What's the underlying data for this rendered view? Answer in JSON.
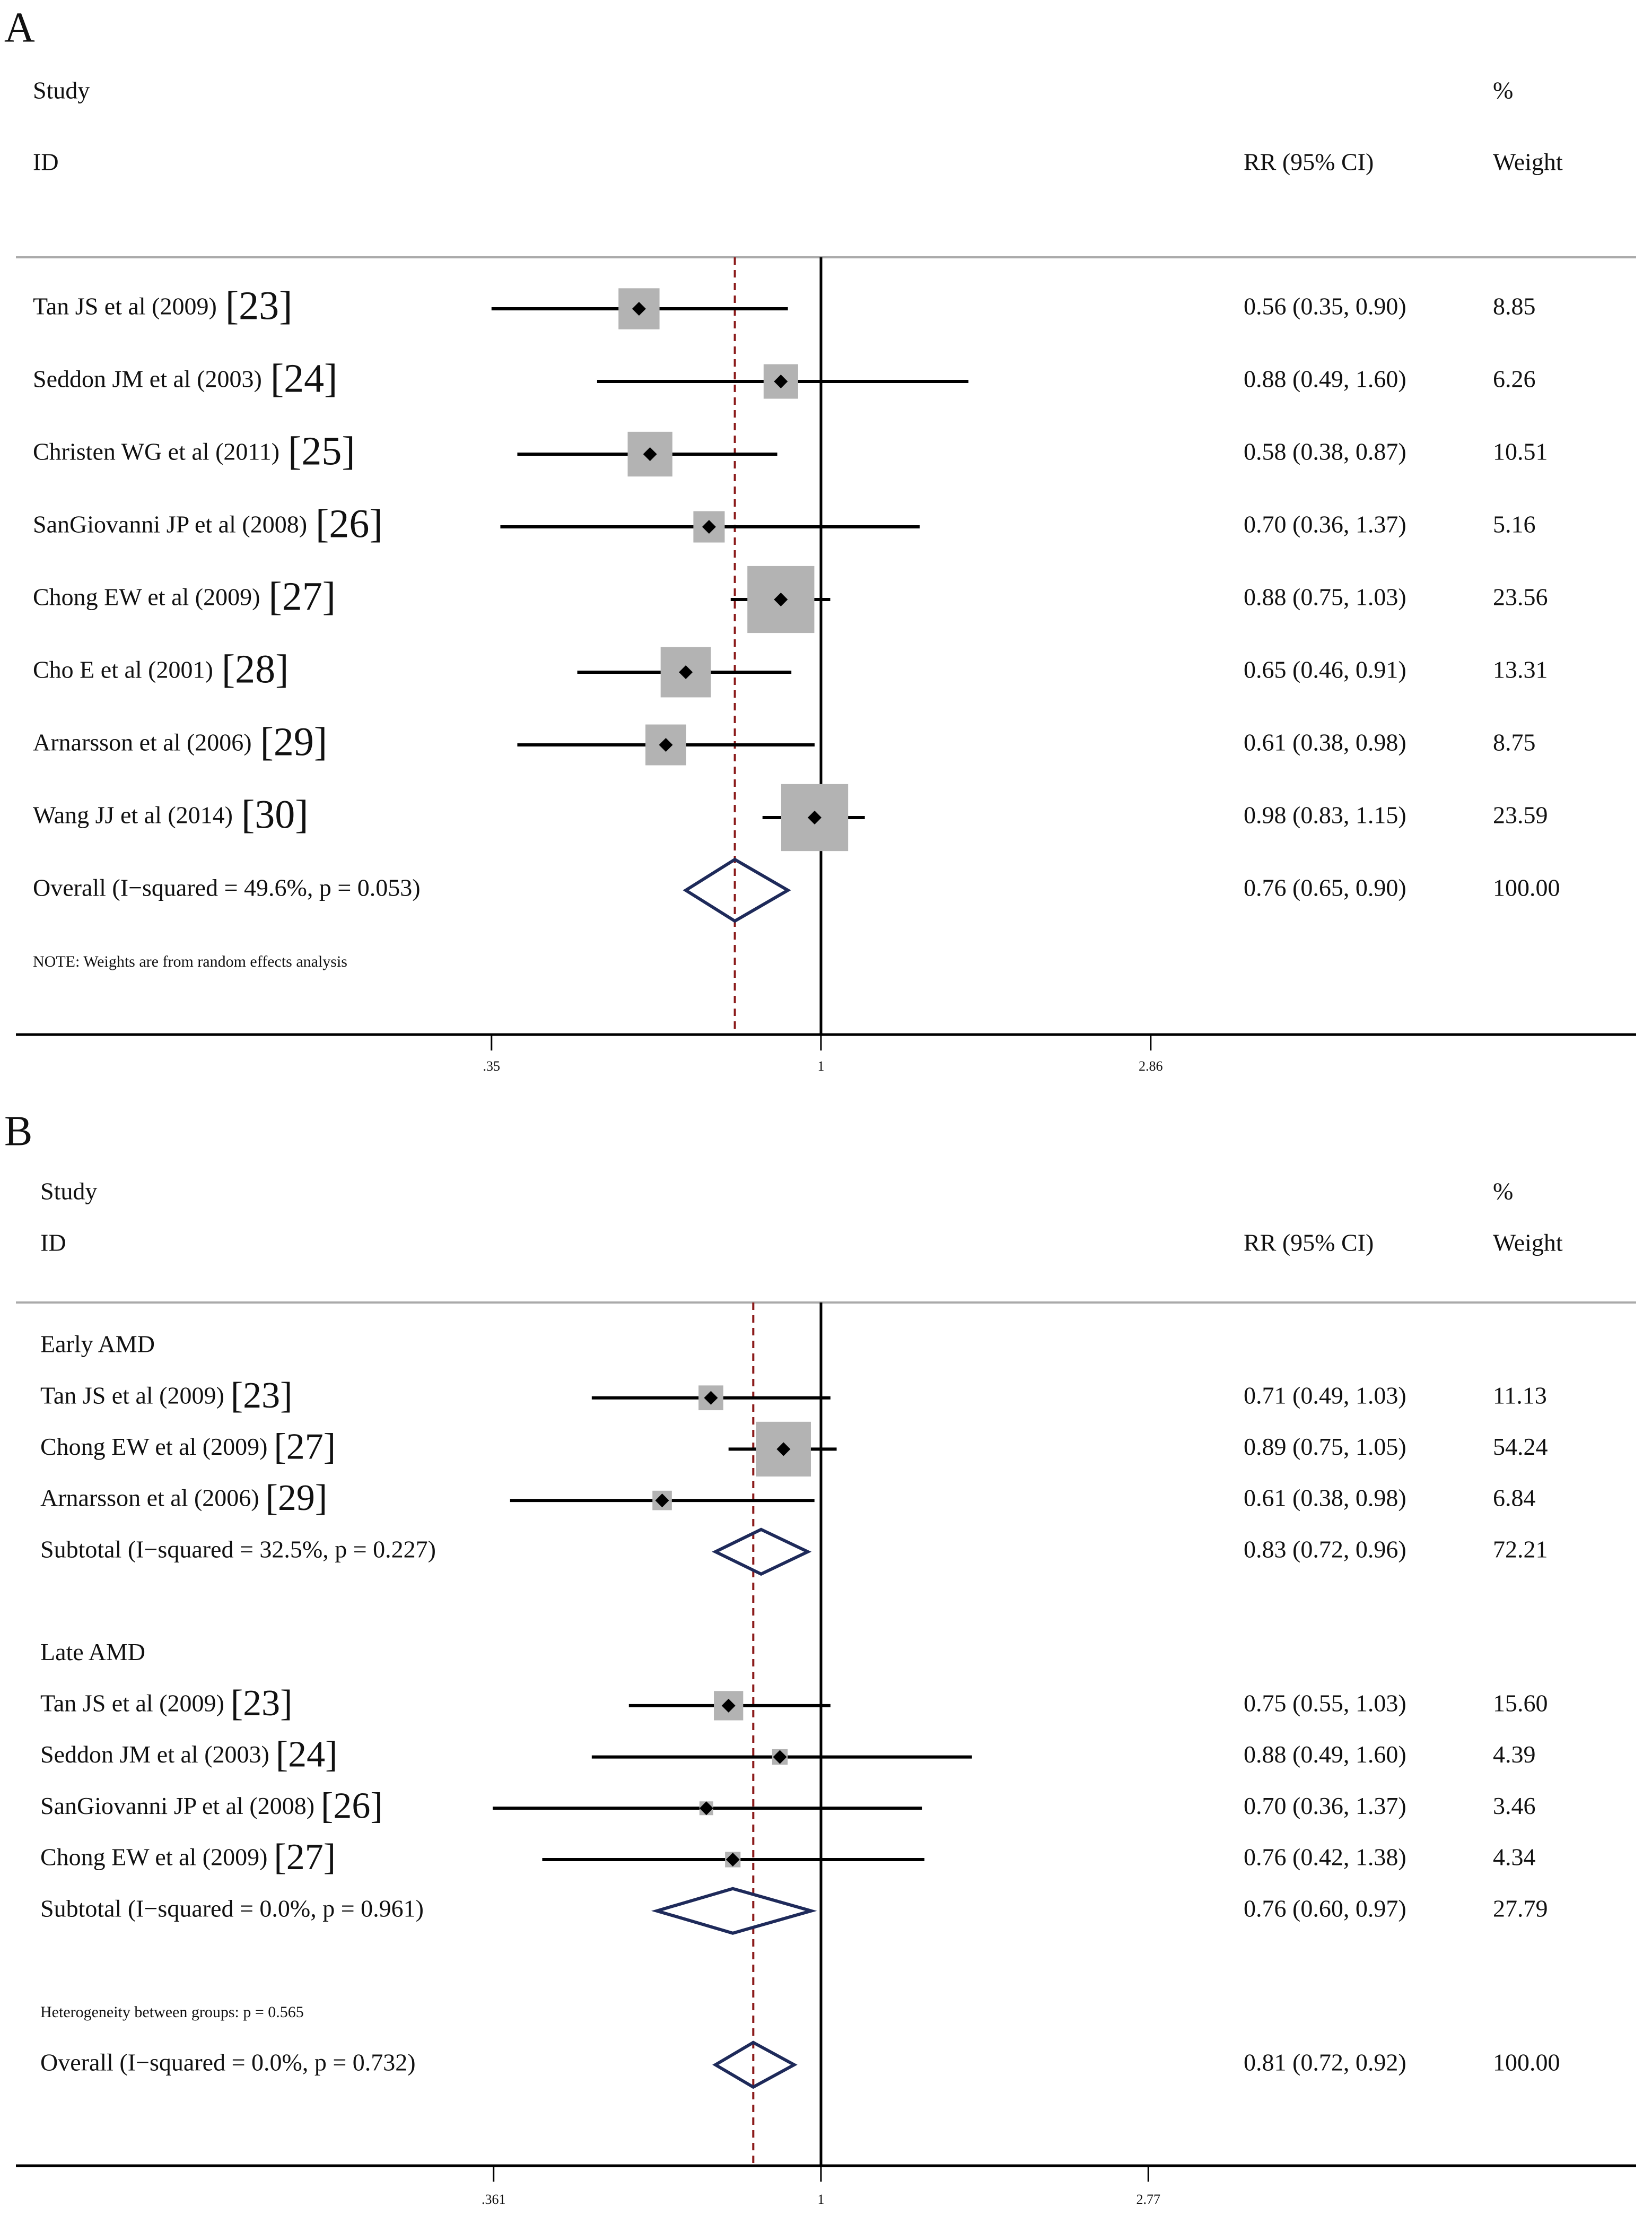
{
  "chart_data": [
    {
      "type": "forest",
      "panel_label": "A",
      "headers": {
        "study": "Study",
        "id": "ID",
        "rr": "RR (95% CI)",
        "pct": "%",
        "weight": "Weight"
      },
      "x_scale": "log",
      "x_ticks": [
        {
          "value": 0.35,
          "label": ".35"
        },
        {
          "value": 1,
          "label": "1"
        },
        {
          "value": 2.86,
          "label": "2.86"
        }
      ],
      "null_line": 1,
      "pooled_line": 0.76,
      "rows": [
        {
          "kind": "study",
          "name": "Tan JS et al (2009)",
          "ref": "[23]",
          "rr": 0.56,
          "lo": 0.35,
          "hi": 0.9,
          "rr_text": "0.56 (0.35, 0.90)",
          "weight": 8.85,
          "weight_text": "8.85"
        },
        {
          "kind": "study",
          "name": "Seddon JM et al (2003)",
          "ref": "[24]",
          "rr": 0.88,
          "lo": 0.49,
          "hi": 1.6,
          "rr_text": "0.88 (0.49, 1.60)",
          "weight": 6.26,
          "weight_text": "6.26"
        },
        {
          "kind": "study",
          "name": "Christen WG et al (2011)",
          "ref": "[25]",
          "rr": 0.58,
          "lo": 0.38,
          "hi": 0.87,
          "rr_text": "0.58 (0.38, 0.87)",
          "weight": 10.51,
          "weight_text": "10.51"
        },
        {
          "kind": "study",
          "name": "SanGiovanni JP et al (2008)",
          "ref": "[26]",
          "rr": 0.7,
          "lo": 0.36,
          "hi": 1.37,
          "rr_text": "0.70 (0.36, 1.37)",
          "weight": 5.16,
          "weight_text": "5.16"
        },
        {
          "kind": "study",
          "name": "Chong EW et al (2009)",
          "ref": "[27]",
          "rr": 0.88,
          "lo": 0.75,
          "hi": 1.03,
          "rr_text": "0.88 (0.75, 1.03)",
          "weight": 23.56,
          "weight_text": "23.56"
        },
        {
          "kind": "study",
          "name": "Cho E et al (2001)",
          "ref": "[28]",
          "rr": 0.65,
          "lo": 0.46,
          "hi": 0.91,
          "rr_text": "0.65 (0.46, 0.91)",
          "weight": 13.31,
          "weight_text": "13.31"
        },
        {
          "kind": "study",
          "name": "Arnarsson et al (2006)",
          "ref": "[29]",
          "rr": 0.61,
          "lo": 0.38,
          "hi": 0.98,
          "rr_text": "0.61 (0.38, 0.98)",
          "weight": 8.75,
          "weight_text": "8.75"
        },
        {
          "kind": "study",
          "name": "Wang JJ et al (2014)",
          "ref": "[30]",
          "rr": 0.98,
          "lo": 0.83,
          "hi": 1.15,
          "rr_text": "0.98 (0.83, 1.15)",
          "weight": 23.59,
          "weight_text": "23.59"
        },
        {
          "kind": "overall",
          "name": "Overall  (I−squared = 49.6%, p = 0.053)",
          "rr": 0.76,
          "lo": 0.65,
          "hi": 0.9,
          "rr_text": "0.76 (0.65, 0.90)",
          "weight_text": "100.00"
        },
        {
          "kind": "note",
          "name": "NOTE: Weights are from random effects analysis"
        }
      ]
    },
    {
      "type": "forest",
      "panel_label": "B",
      "headers": {
        "study": "Study",
        "id": "ID",
        "rr": "RR (95% CI)",
        "pct": "%",
        "weight": "Weight"
      },
      "x_scale": "log",
      "x_ticks": [
        {
          "value": 0.361,
          "label": ".361"
        },
        {
          "value": 1,
          "label": "1"
        },
        {
          "value": 2.77,
          "label": "2.77"
        }
      ],
      "null_line": 1,
      "pooled_line": 0.81,
      "rows": [
        {
          "kind": "group",
          "name": "Early AMD"
        },
        {
          "kind": "study",
          "name": "Tan JS et al (2009)",
          "ref": "[23]",
          "rr": 0.71,
          "lo": 0.49,
          "hi": 1.03,
          "rr_text": "0.71 (0.49, 1.03)",
          "weight": 11.13,
          "weight_text": "11.13"
        },
        {
          "kind": "study",
          "name": "Chong EW et al (2009)",
          "ref": "[27]",
          "rr": 0.89,
          "lo": 0.75,
          "hi": 1.05,
          "rr_text": "0.89 (0.75, 1.05)",
          "weight": 54.24,
          "weight_text": "54.24"
        },
        {
          "kind": "study",
          "name": "Arnarsson et al (2006)",
          "ref": "[29]",
          "rr": 0.61,
          "lo": 0.38,
          "hi": 0.98,
          "rr_text": "0.61 (0.38, 0.98)",
          "weight": 6.84,
          "weight_text": "6.84"
        },
        {
          "kind": "subtotal",
          "name": "Subtotal  (I−squared = 32.5%, p = 0.227)",
          "rr": 0.83,
          "lo": 0.72,
          "hi": 0.96,
          "rr_text": "0.83 (0.72, 0.96)",
          "weight_text": "72.21"
        },
        {
          "kind": "blank"
        },
        {
          "kind": "group",
          "name": "Late AMD"
        },
        {
          "kind": "study",
          "name": "Tan JS et al (2009)",
          "ref": "[23]",
          "rr": 0.75,
          "lo": 0.55,
          "hi": 1.03,
          "rr_text": "0.75 (0.55, 1.03)",
          "weight": 15.6,
          "weight_text": "15.60"
        },
        {
          "kind": "study",
          "name": "Seddon JM et al (2003)",
          "ref": "[24]",
          "rr": 0.88,
          "lo": 0.49,
          "hi": 1.6,
          "rr_text": "0.88 (0.49, 1.60)",
          "weight": 4.39,
          "weight_text": "4.39"
        },
        {
          "kind": "study",
          "name": "SanGiovanni JP et al (2008)",
          "ref": "[26]",
          "rr": 0.7,
          "lo": 0.36,
          "hi": 1.37,
          "rr_text": "0.70 (0.36, 1.37)",
          "weight": 3.46,
          "weight_text": "3.46"
        },
        {
          "kind": "study",
          "name": "Chong EW et al (2009)",
          "ref": "[27]",
          "rr": 0.76,
          "lo": 0.42,
          "hi": 1.38,
          "rr_text": "0.76 (0.42, 1.38)",
          "weight": 4.34,
          "weight_text": "4.34"
        },
        {
          "kind": "subtotal",
          "name": "Subtotal  (I−squared = 0.0%, p = 0.961)",
          "rr": 0.76,
          "lo": 0.6,
          "hi": 0.97,
          "rr_text": "0.76 (0.60, 0.97)",
          "weight_text": "27.79"
        },
        {
          "kind": "blank"
        },
        {
          "kind": "note",
          "name": "Heterogeneity between groups: p = 0.565"
        },
        {
          "kind": "overall",
          "name": "Overall  (I−squared = 0.0%, p = 0.732)",
          "rr": 0.81,
          "lo": 0.72,
          "hi": 0.92,
          "rr_text": "0.81 (0.72, 0.92)",
          "weight_text": "100.00"
        }
      ]
    }
  ],
  "colors": {
    "axis": "#000000",
    "pooled_line": "#8b1a1a",
    "weight_box": "#b3b3b3",
    "diamond": "#1e2a5a",
    "text": "#111111",
    "separator": "#aaaaaa"
  }
}
